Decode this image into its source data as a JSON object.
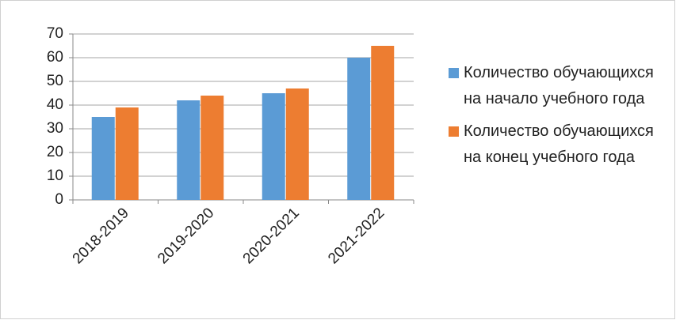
{
  "chart_data": {
    "type": "bar",
    "categories": [
      "2018-2019",
      "2019-2020",
      "2020-2021",
      "2021-2022"
    ],
    "series": [
      {
        "name": "Количество обучающихся на начало учебного года",
        "color": "#5b9bd5",
        "values": [
          35,
          42,
          45,
          60
        ]
      },
      {
        "name": "Количество обучающихся на конец учебного года",
        "color": "#ed7d31",
        "values": [
          39,
          44,
          47,
          65
        ]
      }
    ],
    "ylim": [
      0,
      70
    ],
    "yticks": [
      0,
      10,
      20,
      30,
      40,
      50,
      60,
      70
    ],
    "grid": true,
    "legend": "right"
  }
}
